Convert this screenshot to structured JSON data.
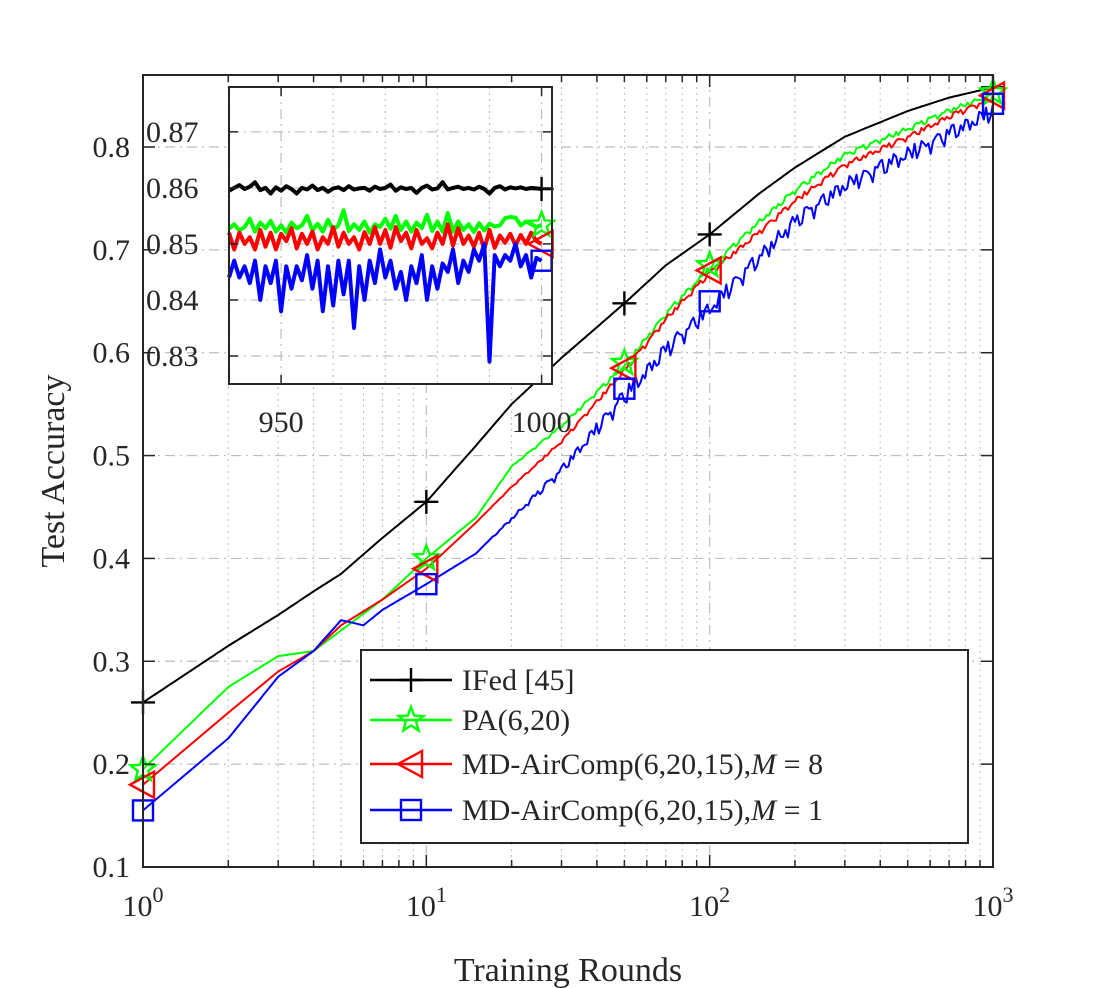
{
  "chart_data": [
    {
      "type": "line",
      "xscale": "log",
      "xlabel": "Training Rounds",
      "ylabel": "Test Accuracy",
      "xlim": [
        1,
        1000
      ],
      "ylim": [
        0.1,
        0.87
      ],
      "xticks": [
        1,
        10,
        100,
        1000
      ],
      "xtick_labels": [
        {
          "base": "10",
          "exp": "0"
        },
        {
          "base": "10",
          "exp": "1"
        },
        {
          "base": "10",
          "exp": "2"
        },
        {
          "base": "10",
          "exp": "3"
        }
      ],
      "yticks": [
        0.1,
        0.2,
        0.3,
        0.4,
        0.5,
        0.6,
        0.7,
        0.8
      ],
      "ytick_labels": [
        "0.1",
        "0.2",
        "0.3",
        "0.4",
        "0.5",
        "0.6",
        "0.7",
        "0.8"
      ],
      "grid": true,
      "legend_position": "bottom-right",
      "series": [
        {
          "name": "IFed [45]",
          "color": "#000000",
          "marker": "plus",
          "marker_x": [
            1,
            10,
            50,
            100,
            1000
          ],
          "x": [
            1,
            2,
            3,
            4,
            5,
            7,
            10,
            15,
            20,
            30,
            50,
            70,
            100,
            150,
            200,
            300,
            500,
            700,
            1000
          ],
          "y": [
            0.26,
            0.315,
            0.345,
            0.368,
            0.385,
            0.42,
            0.455,
            0.51,
            0.55,
            0.595,
            0.648,
            0.685,
            0.715,
            0.755,
            0.78,
            0.81,
            0.835,
            0.848,
            0.858
          ]
        },
        {
          "name": "PA(6,20)",
          "color": "#00ff00",
          "marker": "star",
          "marker_x": [
            1,
            10,
            50,
            100,
            1000
          ],
          "x": [
            1,
            2,
            3,
            4,
            5,
            7,
            10,
            15,
            20,
            30,
            50,
            70,
            100,
            150,
            200,
            300,
            500,
            700,
            1000
          ],
          "y": [
            0.195,
            0.275,
            0.305,
            0.31,
            0.33,
            0.36,
            0.4,
            0.44,
            0.49,
            0.53,
            0.59,
            0.64,
            0.685,
            0.73,
            0.76,
            0.795,
            0.82,
            0.838,
            0.853
          ]
        },
        {
          "name": "MD-AirComp(6,20,15),M = 8",
          "color": "#ff0000",
          "marker": "triangle-left",
          "marker_x": [
            1,
            10,
            50,
            100,
            1000
          ],
          "x": [
            1,
            2,
            3,
            4,
            5,
            7,
            10,
            15,
            20,
            30,
            50,
            70,
            100,
            150,
            200,
            300,
            500,
            700,
            1000
          ],
          "y": [
            0.18,
            0.25,
            0.29,
            0.31,
            0.335,
            0.36,
            0.39,
            0.435,
            0.47,
            0.515,
            0.585,
            0.635,
            0.68,
            0.72,
            0.75,
            0.785,
            0.812,
            0.832,
            0.85
          ]
        },
        {
          "name": "MD-AirComp(6,20,15),M = 1",
          "color": "#0000ff",
          "marker": "square",
          "marker_x": [
            1,
            10,
            50,
            100,
            1000
          ],
          "x": [
            1,
            2,
            3,
            4,
            5,
            6,
            7,
            10,
            15,
            20,
            30,
            50,
            70,
            100,
            150,
            200,
            300,
            500,
            700,
            1000
          ],
          "y": [
            0.155,
            0.225,
            0.285,
            0.31,
            0.34,
            0.335,
            0.35,
            0.375,
            0.405,
            0.44,
            0.49,
            0.565,
            0.61,
            0.65,
            0.7,
            0.735,
            0.77,
            0.8,
            0.82,
            0.842
          ]
        }
      ]
    },
    {
      "type": "line",
      "role": "inset",
      "xlim": [
        940,
        1002
      ],
      "ylim": [
        0.825,
        0.878
      ],
      "xticks": [
        950,
        1000
      ],
      "xtick_labels": [
        "950",
        "1000"
      ],
      "yticks": [
        0.83,
        0.84,
        0.85,
        0.86,
        0.87
      ],
      "ytick_labels": [
        "0.83",
        "0.84",
        "0.85",
        "0.86",
        "0.87"
      ],
      "grid": true,
      "series": [
        {
          "name": "IFed [45]",
          "color": "#000000",
          "marker": "plus",
          "x_start": 940,
          "x_step": 1,
          "y": [
            0.8595,
            0.86,
            0.8605,
            0.8598,
            0.8602,
            0.861,
            0.8596,
            0.86,
            0.859,
            0.8601,
            0.8595,
            0.8603,
            0.8598,
            0.859,
            0.86,
            0.8597,
            0.8604,
            0.8596,
            0.86,
            0.8593,
            0.8599,
            0.8601,
            0.8596,
            0.8603,
            0.8597,
            0.8599,
            0.86,
            0.8595,
            0.8602,
            0.8598,
            0.86,
            0.8606,
            0.8595,
            0.8601,
            0.8598,
            0.86,
            0.8591,
            0.86,
            0.8604,
            0.8597,
            0.8599,
            0.861,
            0.8597,
            0.86,
            0.8602,
            0.8598,
            0.86,
            0.8597,
            0.8602,
            0.8598,
            0.859,
            0.86,
            0.8603,
            0.8597,
            0.8601,
            0.8599,
            0.8601,
            0.8598,
            0.86,
            0.8599,
            0.8598
          ]
        },
        {
          "name": "PA(6,20)",
          "color": "#00ff00",
          "marker": "star",
          "x_start": 940,
          "x_step": 1,
          "y": [
            0.8527,
            0.8535,
            0.8524,
            0.853,
            0.8545,
            0.8522,
            0.8538,
            0.8528,
            0.8541,
            0.8522,
            0.8533,
            0.852,
            0.8538,
            0.8528,
            0.8533,
            0.855,
            0.8524,
            0.8536,
            0.8522,
            0.8543,
            0.8525,
            0.8533,
            0.856,
            0.8523,
            0.8535,
            0.8525,
            0.854,
            0.852,
            0.8535,
            0.853,
            0.8545,
            0.8527,
            0.855,
            0.8525,
            0.854,
            0.8522,
            0.8538,
            0.8528,
            0.8552,
            0.8523,
            0.854,
            0.8522,
            0.8555,
            0.8522,
            0.854,
            0.8525,
            0.8535,
            0.8521,
            0.8537,
            0.8524,
            0.8536,
            0.8531,
            0.8533,
            0.8546,
            0.8548,
            0.8547,
            0.8533,
            0.854,
            0.8535,
            0.853,
            0.8534
          ]
        },
        {
          "name": "MD-AirComp(6,20,15),M = 8",
          "color": "#ff0000",
          "marker": "triangle-left",
          "x_start": 940,
          "x_step": 1,
          "y": [
            0.852,
            0.849,
            0.852,
            0.85,
            0.8512,
            0.849,
            0.8525,
            0.8495,
            0.852,
            0.849,
            0.8518,
            0.8505,
            0.8528,
            0.8492,
            0.8518,
            0.85,
            0.8522,
            0.849,
            0.8512,
            0.85,
            0.853,
            0.8495,
            0.852,
            0.85,
            0.8512,
            0.849,
            0.8521,
            0.85,
            0.853,
            0.85,
            0.8525,
            0.8493,
            0.853,
            0.8505,
            0.852,
            0.8492,
            0.8525,
            0.85,
            0.851,
            0.8492,
            0.852,
            0.85,
            0.8535,
            0.8497,
            0.8528,
            0.85,
            0.8515,
            0.8495,
            0.852,
            0.849,
            0.8525,
            0.8493,
            0.8515,
            0.8502,
            0.8518,
            0.8497,
            0.8516,
            0.85,
            0.852,
            0.8505,
            0.85
          ]
        },
        {
          "name": "MD-AirComp(6,20,15),M = 1",
          "color": "#0000ff",
          "marker": "square",
          "x_start": 940,
          "x_step": 1,
          "y": [
            0.844,
            0.847,
            0.844,
            0.846,
            0.843,
            0.847,
            0.84,
            0.846,
            0.843,
            0.847,
            0.838,
            0.846,
            0.842,
            0.846,
            0.8435,
            0.848,
            0.842,
            0.847,
            0.838,
            0.846,
            0.839,
            0.847,
            0.841,
            0.847,
            0.835,
            0.846,
            0.84,
            0.847,
            0.843,
            0.849,
            0.844,
            0.847,
            0.842,
            0.845,
            0.84,
            0.846,
            0.843,
            0.848,
            0.84,
            0.846,
            0.842,
            0.8465,
            0.845,
            0.849,
            0.843,
            0.847,
            0.845,
            0.849,
            0.847,
            0.85,
            0.829,
            0.848,
            0.846,
            0.848,
            0.847,
            0.85,
            0.846,
            0.848,
            0.844,
            0.8475,
            0.847
          ]
        }
      ]
    }
  ],
  "legend": {
    "items": [
      {
        "text": "IFed [45]",
        "color": "#000000",
        "marker": "plus"
      },
      {
        "text": "PA(6,20)",
        "color": "#00ff00",
        "marker": "star"
      },
      {
        "text": "MD-AirComp(6,20,15),",
        "math_var": "M",
        "math_rest": " = 8",
        "color": "#ff0000",
        "marker": "triangle-left"
      },
      {
        "text": "MD-AirComp(6,20,15),",
        "math_var": "M",
        "math_rest": " = 1",
        "color": "#0000ff",
        "marker": "square"
      }
    ]
  }
}
